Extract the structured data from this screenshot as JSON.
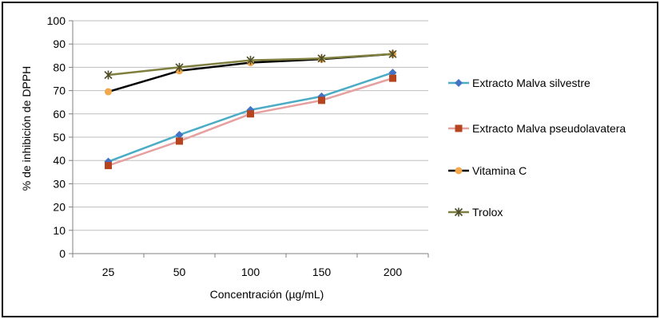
{
  "chart_data": {
    "type": "line",
    "title": "",
    "xlabel": "Concentración (µg/mL)",
    "ylabel": "% de inhibición de DPPH",
    "categories": [
      "25",
      "50",
      "100",
      "150",
      "200"
    ],
    "ylim": [
      0,
      100
    ],
    "yticks": [
      0,
      10,
      20,
      30,
      40,
      50,
      60,
      70,
      80,
      90,
      100
    ],
    "grid": true,
    "legend_position": "right",
    "series": [
      {
        "name": "Extracto Malva silvestre",
        "values": [
          39.5,
          51,
          61.7,
          67.5,
          77.7
        ],
        "color": "#4BACC6",
        "marker_color": "#4472C4",
        "marker": "diamond"
      },
      {
        "name": "Extracto Malva pseudolavatera",
        "values": [
          37.8,
          48.3,
          60,
          65.8,
          75.3
        ],
        "color": "#E6A0A0",
        "marker_color": "#B5441F",
        "marker": "square"
      },
      {
        "name": "Vitamina C",
        "values": [
          69.5,
          78.5,
          82,
          83.5,
          85.7
        ],
        "color": "#000000",
        "marker_color": "#F2A84B",
        "marker": "circle"
      },
      {
        "name": "Trolox",
        "values": [
          76.7,
          80,
          83,
          83.8,
          85.7
        ],
        "color": "#7F7F3F",
        "marker_color": "#4D4D2A",
        "marker": "star"
      }
    ]
  }
}
